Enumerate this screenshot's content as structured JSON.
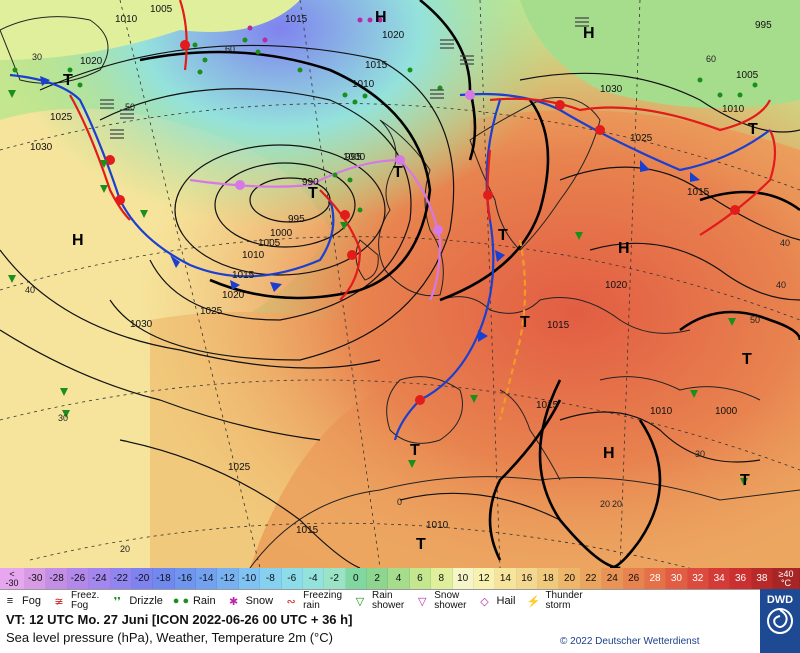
{
  "map": {
    "pressure_labels": [
      "1005",
      "1010",
      "1015",
      "1020",
      "1025",
      "1030",
      "990",
      "995",
      "1000",
      "995",
      "1000",
      "1005",
      "1010",
      "1015",
      "1020",
      "1025",
      "1030",
      "1010",
      "1015",
      "1020",
      "1025",
      "1030",
      "1010",
      "1015",
      "1020",
      "1025",
      "1015",
      "1010",
      "1015",
      "1015",
      "1000",
      "1010",
      "1005",
      "995"
    ],
    "centers": [
      "H",
      "H",
      "H",
      "H",
      "H",
      "T",
      "T",
      "T",
      "T",
      "T",
      "T",
      "T",
      "T",
      "T",
      "T"
    ],
    "lat_labels": [
      "60",
      "50",
      "40",
      "30",
      "20",
      "0"
    ],
    "lon_labels": [
      "60",
      "50",
      "40",
      "30",
      "20",
      "20",
      "30",
      "40"
    ]
  },
  "scale": {
    "first": [
      "<",
      "-30"
    ],
    "steps": [
      "-30",
      "-28",
      "-26",
      "-24",
      "-22",
      "-20",
      "-18",
      "-16",
      "-14",
      "-12",
      "-10",
      "-8",
      "-6",
      "-4",
      "-2",
      "0",
      "2",
      "4",
      "6",
      "8",
      "10",
      "12",
      "14",
      "16",
      "18",
      "20",
      "22",
      "24",
      "26",
      "28",
      "30",
      "32",
      "34",
      "36",
      "38"
    ],
    "last": [
      "≥40",
      "°C"
    ],
    "colors": [
      "#d79be5",
      "#c38ee6",
      "#b388eb",
      "#a386ee",
      "#9185f0",
      "#7f83ef",
      "#7089ef",
      "#6f95ef",
      "#72a2ef",
      "#78b1ef",
      "#80c2f2",
      "#86d0f0",
      "#8cdcea",
      "#94e2dc",
      "#9ae3c6",
      "#80d79f",
      "#8ed690",
      "#a5dd8c",
      "#c3e68f",
      "#dfef9c",
      "#f5f5c8",
      "#f8f2b0",
      "#f6e49c",
      "#f4d790",
      "#f1c97c",
      "#eeb66b",
      "#eca55f",
      "#ea9356",
      "#e8834f",
      "#e67149",
      "#e25d43",
      "#dc4b3d",
      "#d53b36",
      "#cc2f2f",
      "#b82a2a"
    ]
  },
  "legend": {
    "fog": "Fog",
    "freez_fog": [
      "Freez.",
      "Fog"
    ],
    "drizzle": "Drizzle",
    "rain": "Rain",
    "snow": "Snow",
    "freezing_rain": [
      "Freezing",
      "rain"
    ],
    "rain_shower": [
      "Rain",
      "shower"
    ],
    "snow_shower": [
      "Snow",
      "shower"
    ],
    "hail": "Hail",
    "thunderstorm": [
      "Thunder",
      "storm"
    ]
  },
  "info": {
    "line1": "VT: 12 UTC Mo.  27 Juni [ICON 2022-06-26  00 UTC + 36 h]",
    "line2": "Sea level pressure (hPa), Weather, Temperature 2m (°C)"
  },
  "copyright": "© 2022 Deutscher Wetterdienst",
  "logo": "DWD"
}
